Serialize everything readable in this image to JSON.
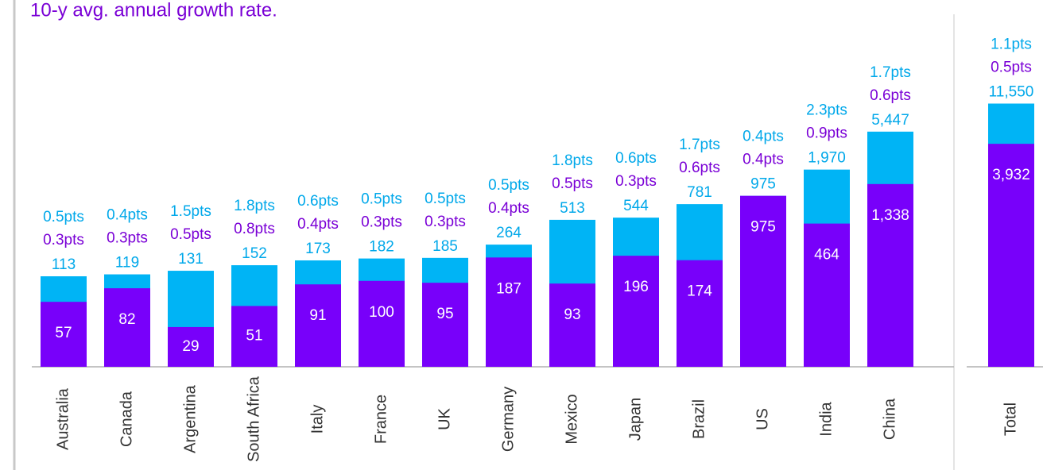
{
  "chart_data": {
    "type": "bar",
    "title": "10-y avg. annual growth rate.",
    "categories": [
      "Australia",
      "Canada",
      "Argentina",
      "South Africa",
      "Italy",
      "France",
      "UK",
      "Germany",
      "Mexico",
      "Japan",
      "Brazil",
      "US",
      "India",
      "China",
      "Total"
    ],
    "series": [
      {
        "color": "#00b4f5",
        "label_color": "#00a8ea",
        "values": [
          113,
          119,
          131,
          152,
          173,
          182,
          185,
          264,
          513,
          544,
          781,
          975,
          1970,
          5447,
          11550
        ],
        "value_labels": [
          "113",
          "119",
          "131",
          "152",
          "173",
          "182",
          "185",
          "264",
          "513",
          "544",
          "781",
          "975",
          "1,970",
          "5,447",
          "11,550"
        ],
        "growth_labels": [
          "0.5pts",
          "0.4pts",
          "1.5pts",
          "1.8pts",
          "0.6pts",
          "0.5pts",
          "0.5pts",
          "0.5pts",
          "1.8pts",
          "0.6pts",
          "1.7pts",
          "0.4pts",
          "2.3pts",
          "1.7pts",
          "1.1pts"
        ]
      },
      {
        "color": "#7800fa",
        "label_color": "#7a00d6",
        "values": [
          57,
          82,
          29,
          51,
          91,
          100,
          95,
          187,
          93,
          196,
          174,
          975,
          464,
          1338,
          3932
        ],
        "value_labels": [
          "57",
          "82",
          "29",
          "51",
          "91",
          "100",
          "95",
          "187",
          "93",
          "196",
          "174",
          "975",
          "464",
          "1,338",
          "3,932"
        ],
        "growth_labels": [
          "0.3pts",
          "0.3pts",
          "0.5pts",
          "0.8pts",
          "0.4pts",
          "0.3pts",
          "0.3pts",
          "0.4pts",
          "0.5pts",
          "0.3pts",
          "0.6pts",
          "0.4pts",
          "0.9pts",
          "0.6pts",
          "0.5pts"
        ]
      }
    ],
    "log_scale": true,
    "ylim": [
      10,
      100000
    ]
  }
}
